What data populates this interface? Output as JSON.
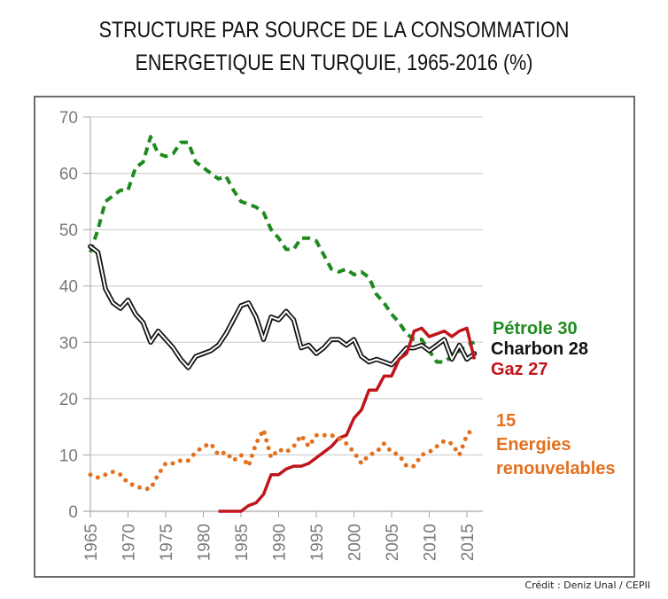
{
  "title_lines": [
    "STRUCTURE PAR SOURCE DE LA CONSOMMATION",
    "ENERGETIQUE EN TURQUIE, 1965-2016 (%)"
  ],
  "credit": "Crédit : Deniz Unal / CEPII",
  "chart_data": {
    "type": "line",
    "title": "STRUCTURE PAR SOURCE DE LA CONSOMMATION ENERGETIQUE EN TURQUIE, 1965-2016 (%)",
    "xlabel": "",
    "ylabel": "",
    "xlim": [
      1965,
      2016
    ],
    "ylim": [
      0,
      70
    ],
    "yticks": [
      "0",
      "10",
      "20",
      "30",
      "40",
      "50",
      "60",
      "70"
    ],
    "xticks": [
      "1965",
      "1970",
      "1975",
      "1980",
      "1985",
      "1990",
      "1995",
      "2000",
      "2005",
      "2010",
      "2015"
    ],
    "grid": "horizontal",
    "series": [
      {
        "name": "Pétrole",
        "label": "Pétrole 30",
        "color": "#1e8a1e",
        "style": "dashed",
        "x_start": 1965,
        "values": [
          46,
          50,
          55,
          56,
          57,
          57,
          61,
          62,
          66.5,
          63.5,
          63,
          63.5,
          65.5,
          65.5,
          62,
          61,
          60,
          59,
          59.5,
          57,
          55,
          54.5,
          54,
          53,
          50,
          48.5,
          46.5,
          46.5,
          48.5,
          48.5,
          48,
          45.5,
          43,
          42.5,
          43,
          42,
          42.5,
          41.5,
          38.5,
          37,
          35,
          33.5,
          31.5,
          30.5,
          30.5,
          28.5,
          26.5,
          26.5,
          27.5,
          28.5,
          29.5,
          30
        ]
      },
      {
        "name": "Charbon",
        "label": "Charbon 28",
        "color": "#111111",
        "style": "double",
        "x_start": 1965,
        "values": [
          47,
          46,
          39.5,
          37,
          36,
          37.5,
          35,
          33.5,
          30,
          32,
          30.5,
          29,
          27,
          25.5,
          27.5,
          28,
          28.5,
          29.5,
          31.5,
          34,
          36.5,
          37,
          34.5,
          30.5,
          34.5,
          34,
          35.5,
          34,
          29,
          29.5,
          28,
          29,
          30.5,
          30.5,
          29.5,
          30.5,
          27.5,
          26.5,
          27,
          26.5,
          26,
          27.5,
          29,
          29,
          29.5,
          28.5,
          29.5,
          30.5,
          27,
          29.5,
          27,
          28
        ]
      },
      {
        "name": "Gaz",
        "label": "Gaz 27",
        "color": "#c0151b",
        "style": "solid",
        "x_start": 1982,
        "values": [
          0,
          0,
          0,
          0,
          1,
          1.5,
          3,
          6.5,
          6.5,
          7.5,
          8,
          8,
          8.5,
          9.5,
          10.5,
          11.5,
          13,
          13.5,
          16.5,
          18,
          21.5,
          21.5,
          24,
          24,
          27,
          28,
          32,
          32.5,
          31,
          31.5,
          32,
          31,
          32,
          32.5,
          27
        ]
      },
      {
        "name": "Energies renouvelables",
        "label": "15 Energies renouvelables",
        "label_lines": [
          "15",
          "Energies",
          "renouvelables"
        ],
        "color": "#e4701e",
        "style": "dotted",
        "x_start": 1965,
        "values": [
          6.5,
          6,
          6.5,
          7,
          6.5,
          5,
          4.5,
          4,
          4,
          6.5,
          8.5,
          8.5,
          9,
          9,
          10.5,
          11.5,
          12,
          10,
          10.5,
          9,
          10,
          8,
          12,
          14.5,
          9.5,
          11,
          10.5,
          11.5,
          13.5,
          11.5,
          13.5,
          13.5,
          13.5,
          13,
          12,
          10.5,
          8.5,
          10,
          10.5,
          12,
          10.5,
          10,
          8,
          8,
          10,
          10.5,
          11.5,
          12.5,
          12,
          10,
          13.5,
          15
        ]
      }
    ]
  }
}
